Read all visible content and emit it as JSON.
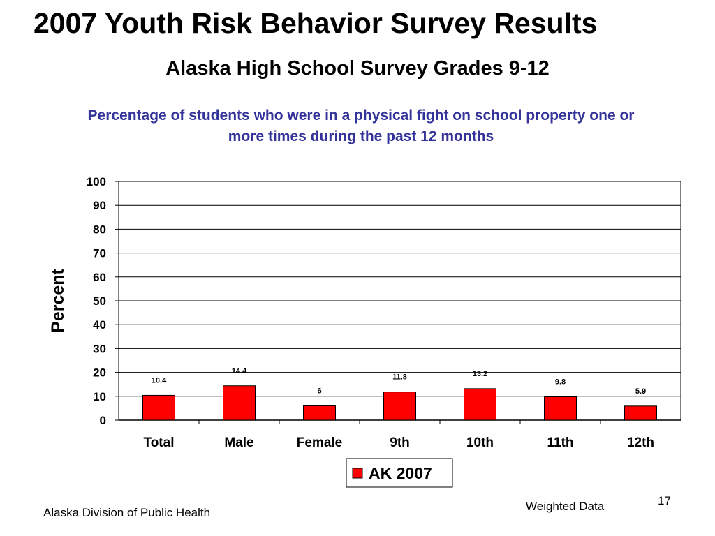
{
  "slide": {
    "title": "2007 Youth Risk Behavior Survey Results",
    "subtitle": "Alaska High School Survey Grades 9-12",
    "footer_left": "Alaska Division of Public Health",
    "footer_note": "Weighted Data",
    "page_number": "17"
  },
  "chart_data": {
    "type": "bar",
    "title": "Percentage of students who were in a physical fight on school property one or more times during the past 12 months",
    "xlabel": "",
    "ylabel": "Percent",
    "ylim": [
      0,
      100
    ],
    "yticks": [
      0,
      10,
      20,
      30,
      40,
      50,
      60,
      70,
      80,
      90,
      100
    ],
    "categories": [
      "Total",
      "Male",
      "Female",
      "9th",
      "10th",
      "11th",
      "12th"
    ],
    "series": [
      {
        "name": "AK 2007",
        "color": "#ff0000",
        "values": [
          10.4,
          14.4,
          6,
          11.8,
          13.2,
          9.8,
          5.9
        ],
        "data_labels": [
          "10.4",
          "14.4",
          "6",
          "11.8",
          "13.2",
          "9.8",
          "5.9"
        ]
      }
    ],
    "grid": true,
    "legend": "bottom-center"
  }
}
